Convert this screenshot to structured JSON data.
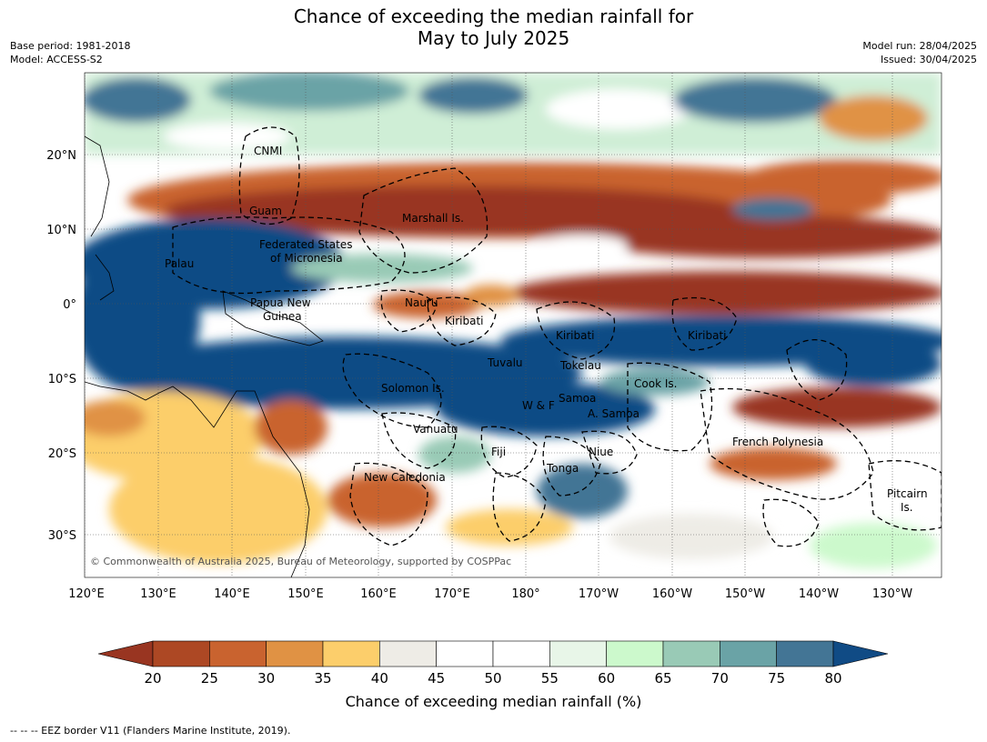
{
  "title": {
    "line1": "Chance of exceeding the median rainfall for",
    "line2": "May to July 2025"
  },
  "meta_left": {
    "line1": "Base period: 1981-2018",
    "line2": "Model: ACCESS-S2"
  },
  "meta_right": {
    "line1": "Model run: 28/04/2025",
    "line2": "Issued: 30/04/2025"
  },
  "axes": {
    "lat_labels": [
      "20°N",
      "10°N",
      "0°",
      "10°S",
      "20°S",
      "30°S"
    ],
    "lon_labels": [
      "120°E",
      "130°E",
      "140°E",
      "150°E",
      "160°E",
      "170°E",
      "180°",
      "170°W",
      "160°W",
      "150°W",
      "140°W",
      "130°W"
    ]
  },
  "places": [
    {
      "name": "CNMI"
    },
    {
      "name": "Guam"
    },
    {
      "name": "Marshall Is."
    },
    {
      "name": "Federated States"
    },
    {
      "name": "of Micronesia"
    },
    {
      "name": "Palau"
    },
    {
      "name": "Papua New"
    },
    {
      "name": "Guinea"
    },
    {
      "name": "Nauru"
    },
    {
      "name": "Kiribati"
    },
    {
      "name": "Kiribati"
    },
    {
      "name": "Kiribati"
    },
    {
      "name": "Tuvalu"
    },
    {
      "name": "Tokelau"
    },
    {
      "name": "Cook Is."
    },
    {
      "name": "Solomon Is."
    },
    {
      "name": "Samoa"
    },
    {
      "name": "W & F"
    },
    {
      "name": "A. Samoa"
    },
    {
      "name": "Vanuatu"
    },
    {
      "name": "Fiji"
    },
    {
      "name": "Niue"
    },
    {
      "name": "French Polynesia"
    },
    {
      "name": "Tonga"
    },
    {
      "name": "New Caledonia"
    },
    {
      "name": "Pitcairn"
    },
    {
      "name": "Is."
    }
  ],
  "copyright": "© Commonwealth of Australia 2025, Bureau of Meteorology, supported by COSPPac",
  "colorbar": {
    "label": "Chance of exceeding median rainfall (%)",
    "ticks": [
      "20",
      "25",
      "30",
      "35",
      "40",
      "45",
      "50",
      "55",
      "60",
      "65",
      "70",
      "75",
      "80"
    ],
    "colors": [
      "#ad4824",
      "#c9632f",
      "#e09244",
      "#fcce6b",
      "#eeece6",
      "#ffffff",
      "#ffffff",
      "#e8f6e8",
      "#ccf9cc",
      "#99cab6",
      "#6aa3a6",
      "#437595"
    ],
    "under_color": "#993521",
    "over_color": "#104b85"
  },
  "footer": "--  --  -- EEZ border V11 (Flanders Marine Institute, 2019)."
}
